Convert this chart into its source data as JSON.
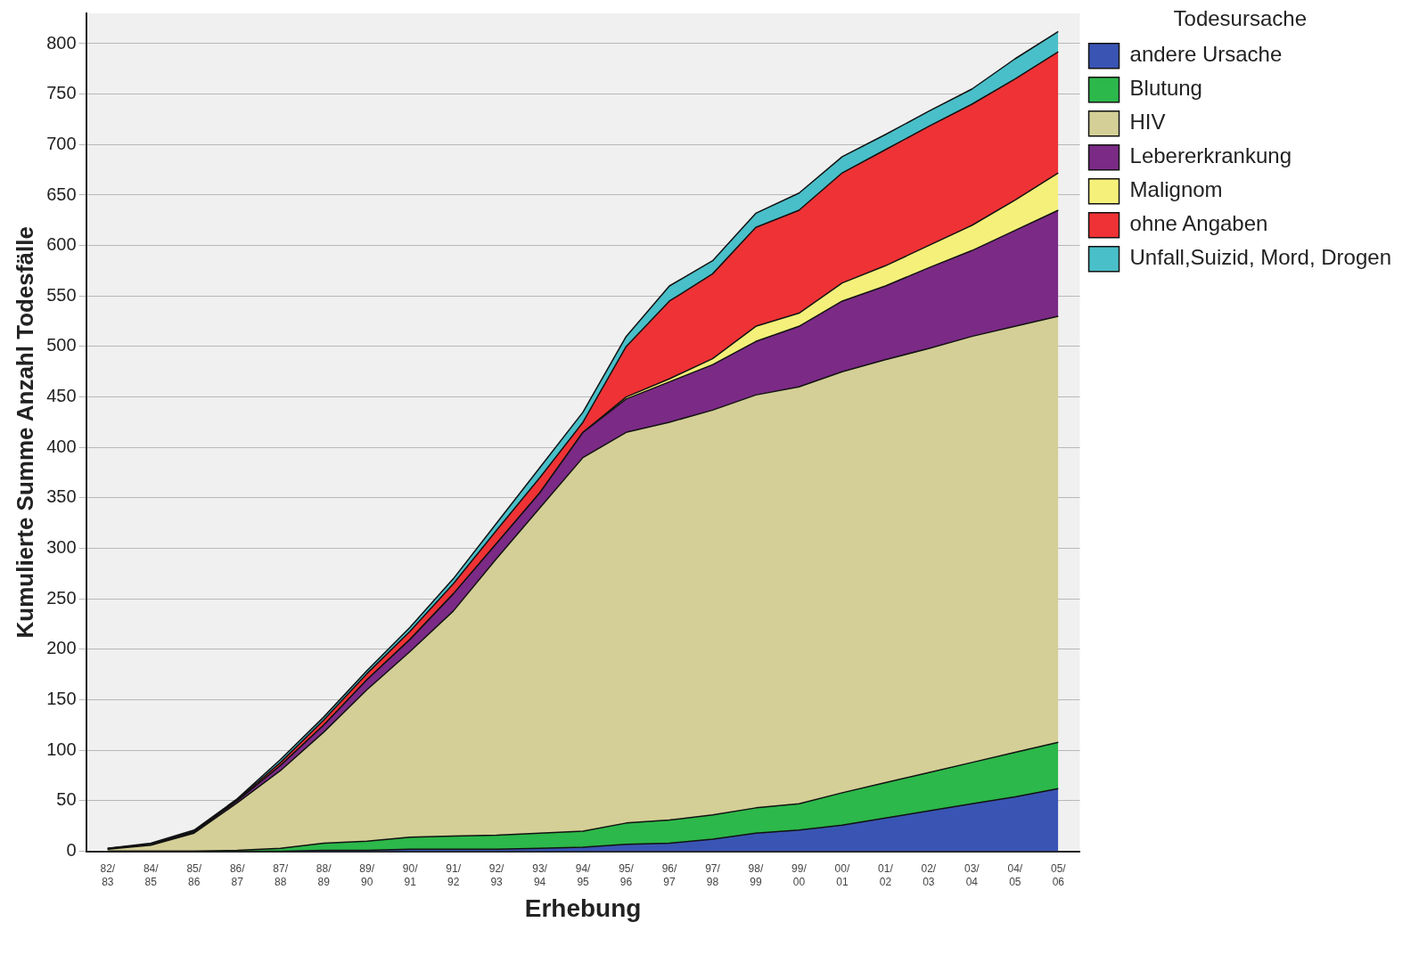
{
  "chart_data": {
    "type": "area",
    "stacked": true,
    "xlabel": "Erhebung",
    "ylabel": "Kumulierte Summe Anzahl Todesfälle",
    "legend_title": "Todesursache",
    "legend": "top right",
    "grid": "y",
    "line_style": "solid",
    "marker": "none",
    "categories": [
      "82/ 83",
      "84/ 85",
      "85/ 86",
      "86/ 87",
      "87/ 88",
      "88/ 89",
      "89/ 90",
      "90/ 91",
      "91/ 92",
      "92/ 93",
      "93/ 94",
      "94/ 95",
      "95/ 96",
      "96/ 97",
      "97/ 98",
      "98/ 99",
      "99/ 00",
      "00/ 01",
      "01/ 02",
      "02/ 03",
      "03/ 04",
      "04/ 05",
      "05/ 06"
    ],
    "ylim": [
      0,
      830
    ],
    "yticks": [
      0,
      50,
      100,
      150,
      200,
      250,
      300,
      350,
      400,
      450,
      500,
      550,
      600,
      650,
      700,
      750,
      800
    ],
    "series": [
      {
        "name": "andere Ursache",
        "color": "#3a54b4",
        "values": [
          0,
          0,
          0,
          0,
          0,
          1,
          1,
          2,
          2,
          2,
          3,
          4,
          7,
          8,
          12,
          18,
          21,
          26,
          33,
          40,
          47,
          54,
          62
        ]
      },
      {
        "name": "Blutung",
        "color": "#2cb84a",
        "values": [
          0,
          0,
          0,
          1,
          3,
          7,
          9,
          12,
          13,
          14,
          15,
          16,
          21,
          23,
          24,
          25,
          26,
          32,
          35,
          38,
          41,
          44,
          46
        ]
      },
      {
        "name": "HIV",
        "color": "#d4cf96",
        "values": [
          2,
          6,
          18,
          47,
          77,
          110,
          150,
          184,
          223,
          274,
          322,
          370,
          387,
          394,
          401,
          409,
          413,
          417,
          419,
          420,
          422,
          422,
          422
        ]
      },
      {
        "name": "Lebererkrankung",
        "color": "#7b2a86",
        "values": [
          0,
          0,
          1,
          2,
          5,
          7,
          10,
          12,
          17,
          15,
          15,
          25,
          33,
          40,
          45,
          53,
          60,
          70,
          73,
          80,
          85,
          95,
          105
        ]
      },
      {
        "name": "Malignom",
        "color": "#f5f07a",
        "values": [
          0,
          0,
          0,
          0,
          0,
          0,
          0,
          0,
          0,
          0,
          0,
          0,
          2,
          3,
          6,
          15,
          13,
          18,
          20,
          22,
          25,
          30,
          37
        ]
      },
      {
        "name": "ohne Angaben",
        "color": "#ef3235",
        "values": [
          1,
          1,
          1,
          1,
          3,
          5,
          6,
          8,
          10,
          13,
          15,
          10,
          50,
          77,
          84,
          98,
          102,
          109,
          115,
          118,
          120,
          120,
          120
        ]
      },
      {
        "name": "Unfall,Suizid, Mord, Drogen",
        "color": "#49bfc9",
        "values": [
          0,
          1,
          1,
          1,
          3,
          3,
          3,
          4,
          5,
          7,
          10,
          10,
          10,
          15,
          13,
          14,
          17,
          16,
          15,
          15,
          15,
          20,
          20
        ]
      }
    ]
  }
}
